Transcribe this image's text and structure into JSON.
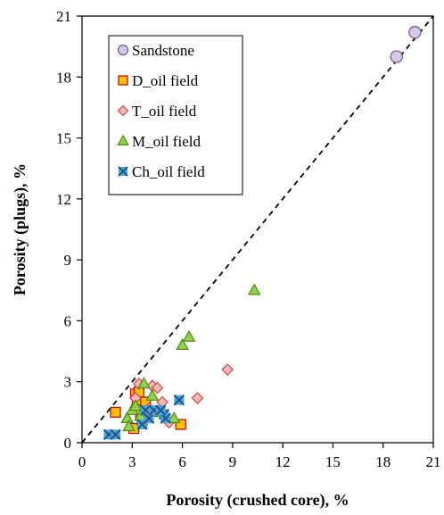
{
  "chart_data": {
    "type": "scatter",
    "title": "",
    "xlabel": "Porosity (crushed core), %",
    "ylabel": "Porosity (plugs), %",
    "xlim": [
      0,
      21
    ],
    "ylim": [
      0,
      21
    ],
    "xticks": [
      "0",
      "3",
      "6",
      "9",
      "12",
      "15",
      "18",
      "21"
    ],
    "yticks": [
      "0",
      "3",
      "6",
      "9",
      "12",
      "15",
      "18",
      "21"
    ],
    "grid": false,
    "legend_position": "top-left",
    "reference_line": {
      "style": "dashed",
      "from": [
        0,
        0
      ],
      "to": [
        21,
        21
      ]
    },
    "series": [
      {
        "name": "Sandstone",
        "marker": "circle",
        "fill": "#d6c8e6",
        "stroke": "#6b5a8a",
        "points": [
          [
            18.8,
            19.0
          ],
          [
            19.9,
            20.2
          ]
        ]
      },
      {
        "name": "D_oil field",
        "marker": "square",
        "fill": "#ffc000",
        "stroke": "#c00000",
        "points": [
          [
            2.0,
            1.5
          ],
          [
            3.1,
            0.7
          ],
          [
            3.2,
            2.4
          ],
          [
            3.3,
            2.1
          ],
          [
            3.5,
            1.4
          ],
          [
            3.6,
            1.1
          ],
          [
            3.8,
            2.0
          ],
          [
            5.9,
            0.9
          ],
          [
            3.4,
            2.5
          ]
        ]
      },
      {
        "name": "T_oil field",
        "marker": "diamond",
        "fill": "#f4b6b6",
        "stroke": "#c0504d",
        "points": [
          [
            3.4,
            2.9
          ],
          [
            4.2,
            2.8
          ],
          [
            4.5,
            2.7
          ],
          [
            4.8,
            2.0
          ],
          [
            5.2,
            1.0
          ],
          [
            6.9,
            2.2
          ],
          [
            8.7,
            3.6
          ],
          [
            3.2,
            2.2
          ],
          [
            4.0,
            1.7
          ]
        ]
      },
      {
        "name": "M_oil field",
        "marker": "triangle",
        "fill": "#92d050",
        "stroke": "#4f8a10",
        "points": [
          [
            2.7,
            1.2
          ],
          [
            2.8,
            0.8
          ],
          [
            3.0,
            1.6
          ],
          [
            3.2,
            1.8
          ],
          [
            3.5,
            1.3
          ],
          [
            3.7,
            2.9
          ],
          [
            4.2,
            2.3
          ],
          [
            5.5,
            1.2
          ],
          [
            6.0,
            4.8
          ],
          [
            6.4,
            5.2
          ],
          [
            10.3,
            7.5
          ],
          [
            4.6,
            1.5
          ]
        ]
      },
      {
        "name": "Ch_oil field",
        "marker": "x-square",
        "fill": "#4aa3df",
        "stroke": "#1f4e79",
        "points": [
          [
            1.6,
            0.4
          ],
          [
            2.0,
            0.4
          ],
          [
            3.6,
            0.9
          ],
          [
            3.8,
            1.6
          ],
          [
            4.0,
            1.2
          ],
          [
            4.3,
            1.6
          ],
          [
            4.9,
            1.4
          ],
          [
            5.0,
            1.2
          ],
          [
            5.8,
            2.1
          ],
          [
            4.7,
            1.6
          ]
        ]
      }
    ]
  }
}
